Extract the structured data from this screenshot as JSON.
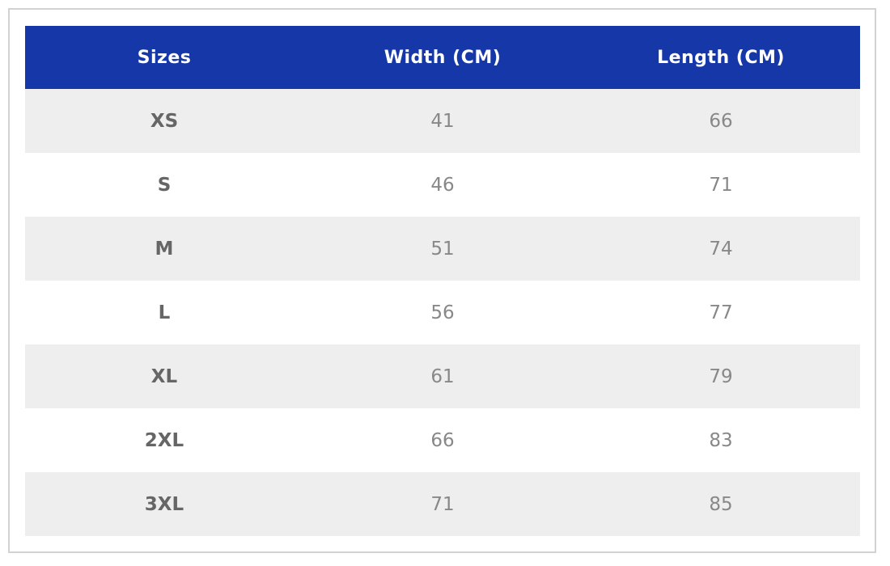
{
  "table": {
    "headers": [
      "Sizes",
      "Width (CM)",
      "Length (CM)"
    ],
    "rows": [
      [
        "XS",
        41,
        66
      ],
      [
        "S",
        46,
        71
      ],
      [
        "M",
        51,
        74
      ],
      [
        "L",
        56,
        77
      ],
      [
        "XL",
        61,
        79
      ],
      [
        "2XL",
        66,
        83
      ],
      [
        "3XL",
        71,
        85
      ]
    ]
  }
}
